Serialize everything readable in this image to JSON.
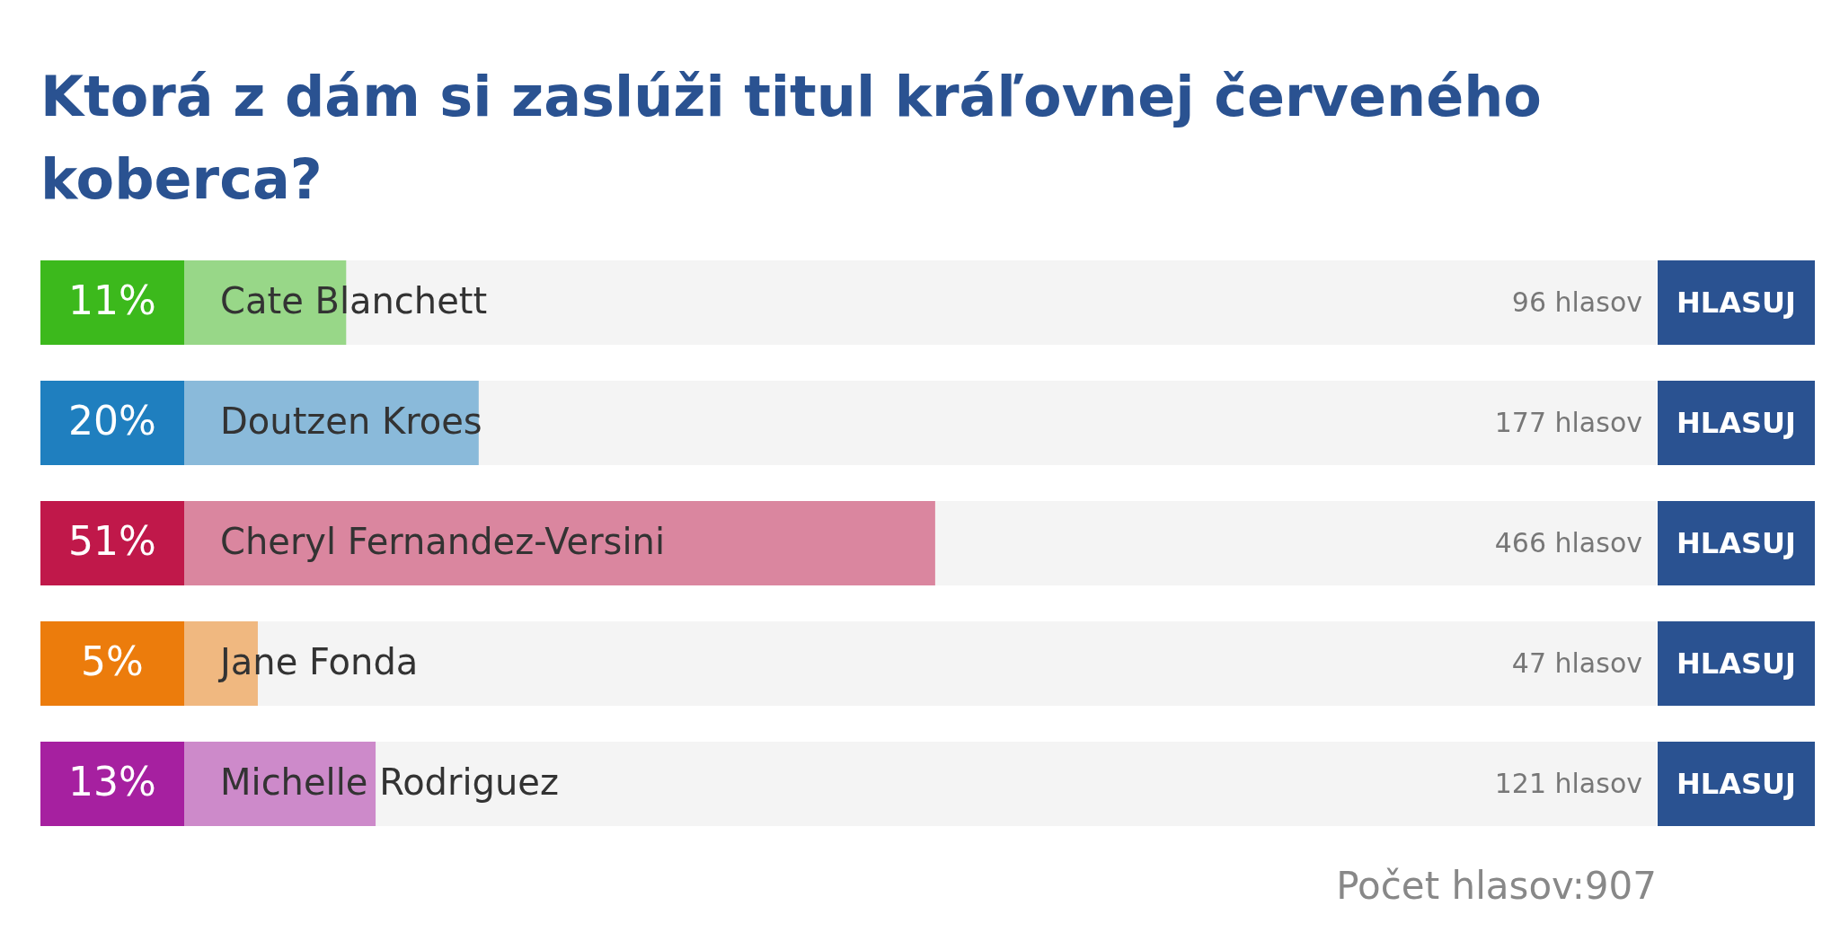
{
  "chart_data": {
    "type": "bar",
    "orientation": "horizontal",
    "title": "Ktorá z dám si zaslúži titul kráľovnej červeného koberca?",
    "categories": [
      "Cate Blanchett",
      "Doutzen Kroes",
      "Cheryl Fernandez-Versini",
      "Jane Fonda",
      "Michelle Rodriguez"
    ],
    "values": [
      11,
      20,
      51,
      5,
      13
    ],
    "colors": [
      "#3cb91c",
      "#1f7fbf",
      "#c0184a",
      "#ec7c0c",
      "#a620a0"
    ],
    "value_labels": [
      "11%",
      "20%",
      "51%",
      "5%",
      "13%"
    ],
    "xlim": [
      0,
      100
    ],
    "annotations": [
      "96 hlasov",
      "177 hlasov",
      "466 hlasov",
      "47 hlasov",
      "121 hlasov",
      "HLASUJ",
      "Počet hlasov:907"
    ],
    "legend": false
  }
}
